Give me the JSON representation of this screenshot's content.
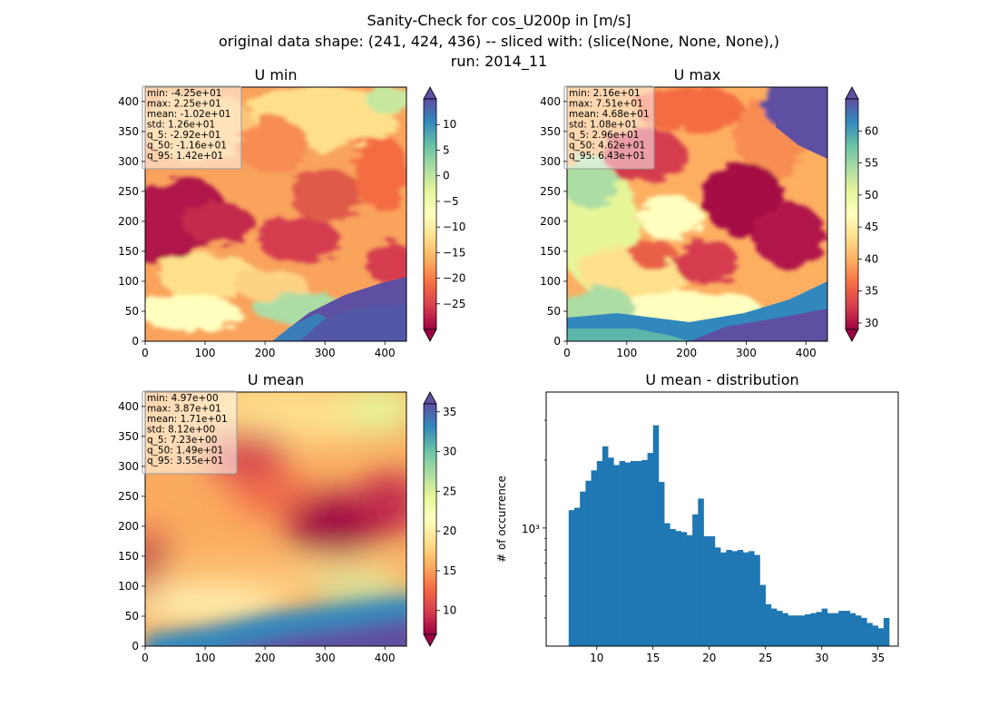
{
  "suptitle": [
    "Sanity-Check for cos_U200p in [m/s]",
    "original data shape: (241, 424, 436) -- sliced with: (slice(None, None, None),)",
    "run: 2014_11"
  ],
  "panels": {
    "umin": {
      "title": "U min",
      "x_ticks": [
        "0",
        "100",
        "200",
        "300",
        "400"
      ],
      "y_ticks": [
        "0",
        "50",
        "100",
        "150",
        "200",
        "250",
        "300",
        "350",
        "400"
      ],
      "colorbar_ticks": [
        "10",
        "5",
        "0",
        "−5",
        "−10",
        "−15",
        "−20",
        "−25"
      ],
      "colorbar_range": [
        -30,
        15
      ],
      "stats": [
        "min: -4.25e+01",
        "max: 2.25e+01",
        "mean: -1.02e+01",
        "std: 1.26e+01",
        "q_5: -2.92e+01",
        "q_50: -1.16e+01",
        "q_95: 1.42e+01"
      ]
    },
    "umax": {
      "title": "U max",
      "x_ticks": [
        "0",
        "100",
        "200",
        "300",
        "400"
      ],
      "y_ticks": [
        "0",
        "50",
        "100",
        "150",
        "200",
        "250",
        "300",
        "350",
        "400"
      ],
      "colorbar_ticks": [
        "60",
        "55",
        "50",
        "45",
        "40",
        "35",
        "30"
      ],
      "colorbar_range": [
        29,
        65
      ],
      "stats": [
        "min: 2.16e+01",
        "max: 7.51e+01",
        "mean: 4.68e+01",
        "std: 1.08e+01",
        "q_5: 2.96e+01",
        "q_50: 4.62e+01",
        "q_95: 6.43e+01"
      ]
    },
    "umean": {
      "title": "U mean",
      "x_ticks": [
        "0",
        "100",
        "200",
        "300",
        "400"
      ],
      "y_ticks": [
        "0",
        "50",
        "100",
        "150",
        "200",
        "250",
        "300",
        "350",
        "400"
      ],
      "colorbar_ticks": [
        "35",
        "30",
        "25",
        "20",
        "15",
        "10"
      ],
      "colorbar_range": [
        7,
        36
      ],
      "stats": [
        "min: 4.97e+00",
        "max: 3.87e+01",
        "mean: 1.71e+01",
        "std: 8.12e+00",
        "q_5: 7.23e+00",
        "q_50: 1.49e+01",
        "q_95: 3.55e+01"
      ]
    }
  },
  "chart_data": [
    {
      "type": "heatmap",
      "title": "U min",
      "xlim": [
        0,
        436
      ],
      "ylim": [
        0,
        424
      ],
      "colormap": "Spectral",
      "colorbar_range": [
        -30,
        15
      ]
    },
    {
      "type": "heatmap",
      "title": "U max",
      "xlim": [
        0,
        436
      ],
      "ylim": [
        0,
        424
      ],
      "colormap": "Spectral",
      "colorbar_range": [
        29,
        65
      ]
    },
    {
      "type": "heatmap",
      "title": "U mean",
      "xlim": [
        0,
        436
      ],
      "ylim": [
        0,
        424
      ],
      "colormap": "Spectral",
      "colorbar_range": [
        7,
        36
      ]
    },
    {
      "type": "bar",
      "title": "U mean - distribution",
      "ylabel": "# of occurrence",
      "yscale": "log",
      "xlim": [
        5.5,
        36.8
      ],
      "ylim": [
        300,
        4000
      ],
      "x_ticks": [
        "10",
        "15",
        "20",
        "25",
        "30",
        "35"
      ],
      "y_tick_label": "10³",
      "bar_color": "#1f77b4",
      "bins": [
        [
          7.5,
          1200
        ],
        [
          8.0,
          1230
        ],
        [
          8.5,
          1450
        ],
        [
          9.0,
          1620
        ],
        [
          9.5,
          1800
        ],
        [
          10.0,
          1980
        ],
        [
          10.5,
          2300
        ],
        [
          11.0,
          2050
        ],
        [
          11.5,
          1900
        ],
        [
          12.0,
          1980
        ],
        [
          12.5,
          1950
        ],
        [
          13.0,
          1980
        ],
        [
          13.5,
          1980
        ],
        [
          14.0,
          2000
        ],
        [
          14.5,
          2150
        ],
        [
          15.0,
          2850
        ],
        [
          15.5,
          1600
        ],
        [
          16.0,
          1050
        ],
        [
          16.5,
          990
        ],
        [
          17.0,
          970
        ],
        [
          17.5,
          960
        ],
        [
          18.0,
          930
        ],
        [
          18.5,
          1150
        ],
        [
          19.0,
          1350
        ],
        [
          19.5,
          920
        ],
        [
          20.0,
          920
        ],
        [
          20.5,
          820
        ],
        [
          21.0,
          780
        ],
        [
          21.5,
          800
        ],
        [
          22.0,
          790
        ],
        [
          22.5,
          800
        ],
        [
          23.0,
          780
        ],
        [
          23.5,
          790
        ],
        [
          24.0,
          760
        ],
        [
          24.5,
          560
        ],
        [
          25.0,
          460
        ],
        [
          25.5,
          440
        ],
        [
          26.0,
          430
        ],
        [
          26.5,
          420
        ],
        [
          27.0,
          410
        ],
        [
          27.5,
          410
        ],
        [
          28.0,
          410
        ],
        [
          28.5,
          415
        ],
        [
          29.0,
          420
        ],
        [
          29.5,
          425
        ],
        [
          30.0,
          440
        ],
        [
          30.5,
          420
        ],
        [
          31.0,
          420
        ],
        [
          31.5,
          430
        ],
        [
          32.0,
          430
        ],
        [
          32.5,
          420
        ],
        [
          33.0,
          410
        ],
        [
          33.5,
          400
        ],
        [
          34.0,
          380
        ],
        [
          34.5,
          370
        ],
        [
          35.0,
          360
        ],
        [
          35.5,
          400
        ]
      ]
    }
  ]
}
